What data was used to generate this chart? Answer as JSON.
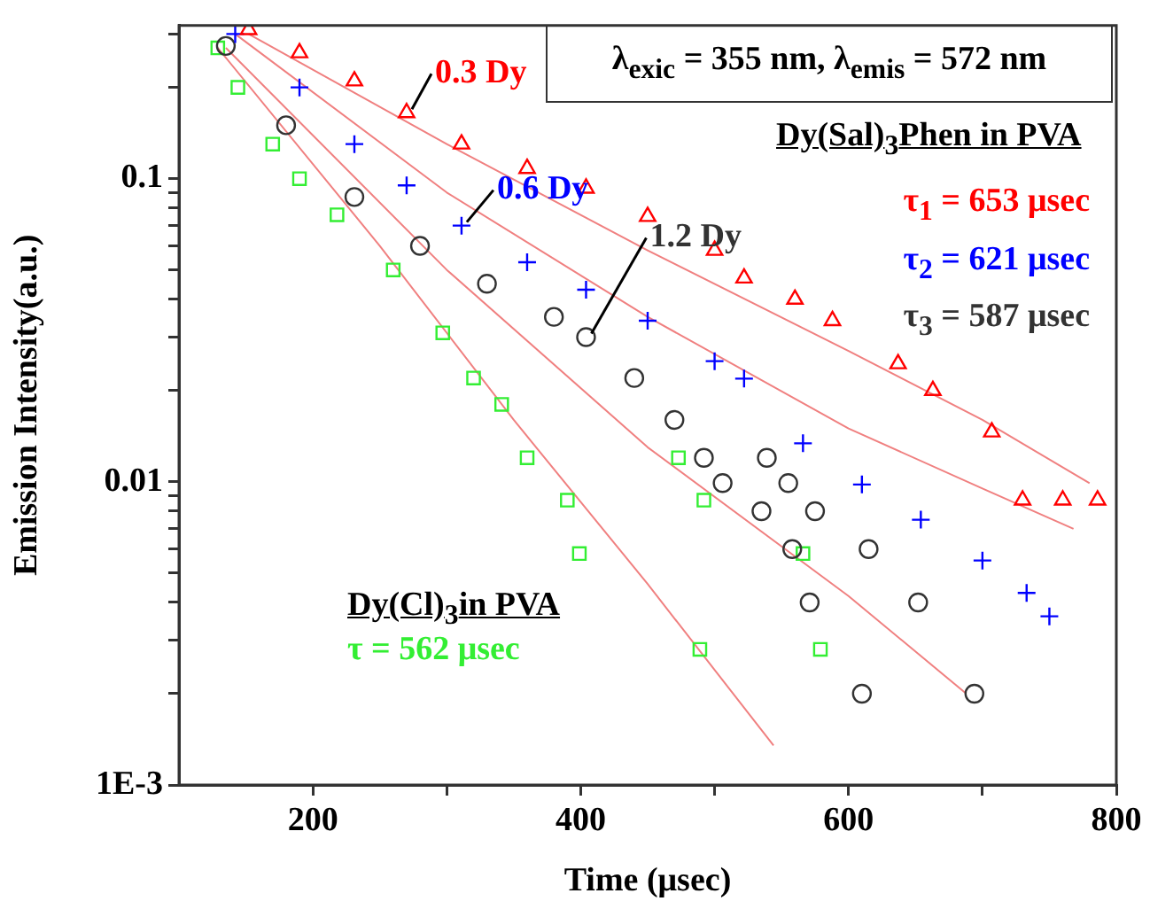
{
  "chart_data": {
    "type": "scatter",
    "xlabel": "Time (μsec)",
    "ylabel": "Emission Intensity(a.u.)",
    "xlim": [
      100,
      800
    ],
    "xticks": [
      200,
      {
        "value": 300,
        "label": null
      },
      400,
      {
        "value": 500,
        "label": null
      },
      600,
      {
        "value": 700,
        "label": null
      },
      800
    ],
    "ylim": [
      0.001,
      0.32
    ],
    "yticks": [
      {
        "value": 0.001,
        "label": "1E-3"
      },
      {
        "value": 0.002,
        "label": null
      },
      {
        "value": 0.003,
        "label": null
      },
      {
        "value": 0.004,
        "label": null
      },
      {
        "value": 0.005,
        "label": null
      },
      {
        "value": 0.006,
        "label": null
      },
      {
        "value": 0.007,
        "label": null
      },
      {
        "value": 0.008,
        "label": null
      },
      {
        "value": 0.009,
        "label": null
      },
      0.01,
      {
        "value": 0.02,
        "label": null
      },
      {
        "value": 0.03,
        "label": null
      },
      {
        "value": 0.04,
        "label": null
      },
      {
        "value": 0.05,
        "label": null
      },
      {
        "value": 0.06,
        "label": null
      },
      {
        "value": 0.07,
        "label": null
      },
      {
        "value": 0.08,
        "label": null
      },
      {
        "value": 0.09,
        "label": null
      },
      0.1,
      {
        "value": 0.2,
        "label": null
      },
      {
        "value": 0.3,
        "label": null
      }
    ],
    "log": "y",
    "grid": false,
    "legend": false,
    "series": [
      {
        "name": "0.3 Dy",
        "marker": "triangle",
        "color": "#ff0000",
        "x": [
          152,
          190,
          231,
          270,
          311,
          360,
          404,
          450,
          500,
          522,
          560,
          588,
          637,
          663,
          707,
          730,
          760,
          786
        ],
        "values": [
          0.31,
          0.26,
          0.21,
          0.165,
          0.13,
          0.108,
          0.093,
          0.075,
          0.058,
          0.047,
          0.04,
          0.034,
          0.0245,
          0.02,
          0.0146,
          0.0087,
          0.0087,
          0.0087
        ]
      },
      {
        "name": "0.6 Dy",
        "marker": "cross",
        "color": "#0000ff",
        "x": [
          142,
          190,
          231,
          270,
          311,
          360,
          404,
          450,
          500,
          522,
          566,
          610,
          654,
          700,
          733,
          750
        ],
        "values": [
          0.3,
          0.2,
          0.13,
          0.095,
          0.07,
          0.053,
          0.043,
          0.034,
          0.025,
          0.0219,
          0.0134,
          0.0098,
          0.0075,
          0.0055,
          0.0043,
          0.0036
        ]
      },
      {
        "name": "1.2 Dy",
        "marker": "circle",
        "color": "#333333",
        "x": [
          135,
          180,
          231,
          280,
          330,
          380,
          404,
          440,
          470,
          492,
          539,
          506,
          555,
          535,
          575,
          558,
          615,
          571,
          652,
          610,
          694
        ],
        "values": [
          0.274,
          0.15,
          0.087,
          0.06,
          0.045,
          0.035,
          0.03,
          0.022,
          0.016,
          0.012,
          0.012,
          0.0099,
          0.0099,
          0.008,
          0.008,
          0.006,
          0.006,
          0.004,
          0.004,
          0.002,
          0.002
        ]
      },
      {
        "marker": "square",
        "color": "#33ee33",
        "x": [
          129,
          144,
          170,
          190,
          218,
          260,
          297,
          320,
          341,
          360,
          473,
          390,
          492,
          399,
          566,
          489,
          579
        ],
        "values": [
          0.27,
          0.2,
          0.13,
          0.1,
          0.076,
          0.05,
          0.031,
          0.022,
          0.018,
          0.012,
          0.012,
          0.0087,
          0.0087,
          0.0058,
          0.0058,
          0.0028,
          0.0028
        ]
      },
      {
        "type": "line",
        "marker": "none",
        "color": "#f08080",
        "x": [
          152,
          300,
          450,
          600,
          700,
          780
        ],
        "values": [
          0.3,
          0.13,
          0.058,
          0.027,
          0.016,
          0.0099
        ]
      },
      {
        "type": "line",
        "marker": "none",
        "color": "#f08080",
        "x": [
          142,
          300,
          450,
          600,
          700,
          768
        ],
        "values": [
          0.3,
          0.09,
          0.035,
          0.015,
          0.0095,
          0.007
        ]
      },
      {
        "type": "line",
        "marker": "none",
        "color": "#f08080",
        "x": [
          135,
          300,
          450,
          600,
          688
        ],
        "values": [
          0.27,
          0.05,
          0.013,
          0.0042,
          0.002
        ]
      },
      {
        "type": "line",
        "marker": "none",
        "color": "#f08080",
        "x": [
          129,
          250,
          350,
          450,
          544
        ],
        "values": [
          0.27,
          0.06,
          0.016,
          0.0046,
          0.00135
        ]
      }
    ],
    "annotations": [
      "λ$_{exic}$ = 355 nm, λ$_{emis}$ = 572 nm",
      "Dy(Sal)$_{3}$Phen in PVA",
      "τ$_{1}$ = 653 μsec",
      "τ$_{2}$ = 621 μsec",
      "τ$_{3}$ = 587 μsec",
      "Dy(Cl)$_{3}$in PVA",
      "τ = 562 μsec"
    ]
  }
}
